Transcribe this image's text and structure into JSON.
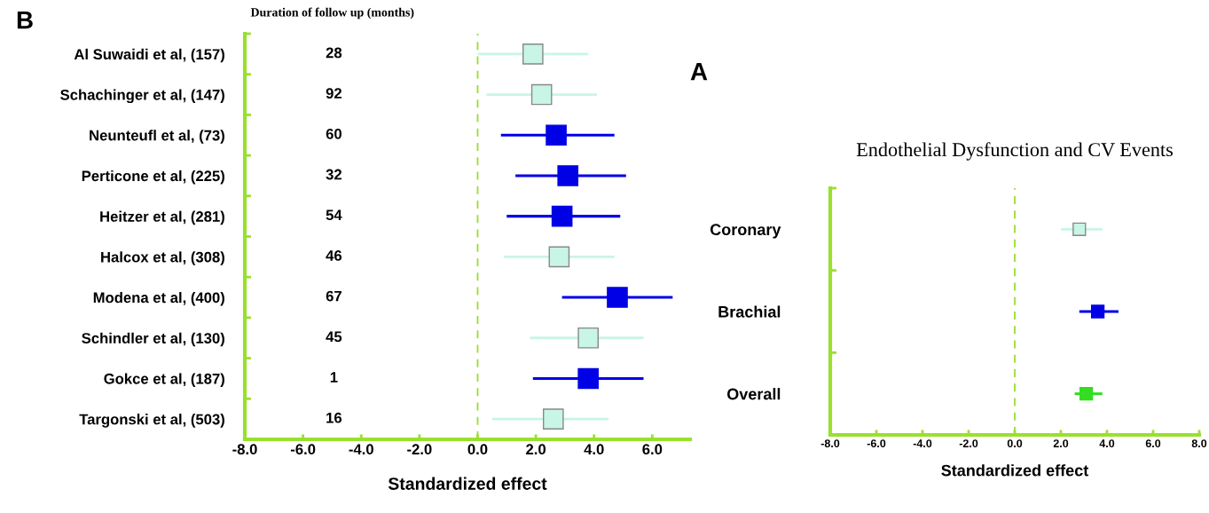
{
  "chart_data": [
    {
      "type": "scatter",
      "orientation": "horizontal",
      "xlabel": "Standardized effect",
      "categories": [
        "Al Suwaidi et al, (157)",
        "Schachinger et al, (147)",
        "Neunteufl et al, (73)",
        "Perticone et al, (225)",
        "Heitzer et al, (281)",
        "Halcox et al, (308)",
        "Modena et al, (400)",
        "Schindler et al, (130)",
        "Gokce et al, (187)",
        "Targonski et al, (503)"
      ],
      "values": [
        1.9,
        2.2,
        2.7,
        3.1,
        2.9,
        2.8,
        4.8,
        3.8,
        3.8,
        2.6
      ],
      "errors": [
        [
          0.0,
          3.8
        ],
        [
          0.3,
          4.1
        ],
        [
          0.8,
          4.7
        ],
        [
          1.3,
          5.1
        ],
        [
          1.0,
          4.9
        ],
        [
          0.9,
          4.7
        ],
        [
          2.9,
          6.7
        ],
        [
          1.8,
          5.7
        ],
        [
          1.9,
          5.7
        ],
        [
          0.5,
          4.5
        ]
      ],
      "colors": [
        "#c8f5e6",
        "#c8f5e6",
        "#0000e6",
        "#0000e6",
        "#0000e6",
        "#c8f5e6",
        "#0000e6",
        "#c8f5e6",
        "#0000e6",
        "#c8f5e6"
      ],
      "marker": "square",
      "xlim": [
        -8,
        7.3
      ],
      "xticks": [
        {
          "value": -8,
          "label": "-8.0"
        },
        {
          "value": -6,
          "label": "-6.0"
        },
        {
          "value": -4,
          "label": "-4.0"
        },
        {
          "value": -2,
          "label": "-2.0"
        },
        {
          "value": 0,
          "label": "0.0"
        },
        {
          "value": 2,
          "label": "2.0"
        },
        {
          "value": 4,
          "label": "4.0"
        },
        {
          "value": 6,
          "label": "6.0"
        }
      ],
      "ref_lines": [
        {
          "axis": "x",
          "value": 0,
          "color": "#99dd33",
          "line_style": "dashed"
        }
      ],
      "annotations": [
        "B",
        "Duration of follow up (months)",
        "28",
        "92",
        "60",
        "32",
        "54",
        "46",
        "67",
        "45",
        "1",
        "16"
      ],
      "grid": false,
      "legend": false
    },
    {
      "type": "scatter",
      "orientation": "horizontal",
      "title": "Endothelial Dysfunction and CV Events",
      "xlabel": "Standardized effect",
      "categories": [
        "Coronary",
        "Brachial",
        "Overall"
      ],
      "values": [
        2.8,
        3.6,
        3.1
      ],
      "errors": [
        [
          2.0,
          3.8
        ],
        [
          2.8,
          4.5
        ],
        [
          2.6,
          3.8
        ]
      ],
      "colors": [
        "#c8f5e6",
        "#0000e6",
        "#33dd22"
      ],
      "marker": "square",
      "xlim": [
        -8,
        8
      ],
      "xticks": [
        {
          "value": -8,
          "label": "-8.0"
        },
        {
          "value": -6,
          "label": "-6.0"
        },
        {
          "value": -4,
          "label": "-4.0"
        },
        {
          "value": -2,
          "label": "-2.0"
        },
        {
          "value": 0,
          "label": "0.0"
        },
        {
          "value": 2,
          "label": "2.0"
        },
        {
          "value": 4,
          "label": "4.0"
        },
        {
          "value": 6,
          "label": "6.0"
        },
        {
          "value": 8,
          "label": "8.0"
        }
      ],
      "ref_lines": [
        {
          "axis": "x",
          "value": 0,
          "color": "#99dd33",
          "line_style": "dashed"
        }
      ],
      "annotations": [
        "A"
      ],
      "grid": false,
      "legend": false
    }
  ]
}
